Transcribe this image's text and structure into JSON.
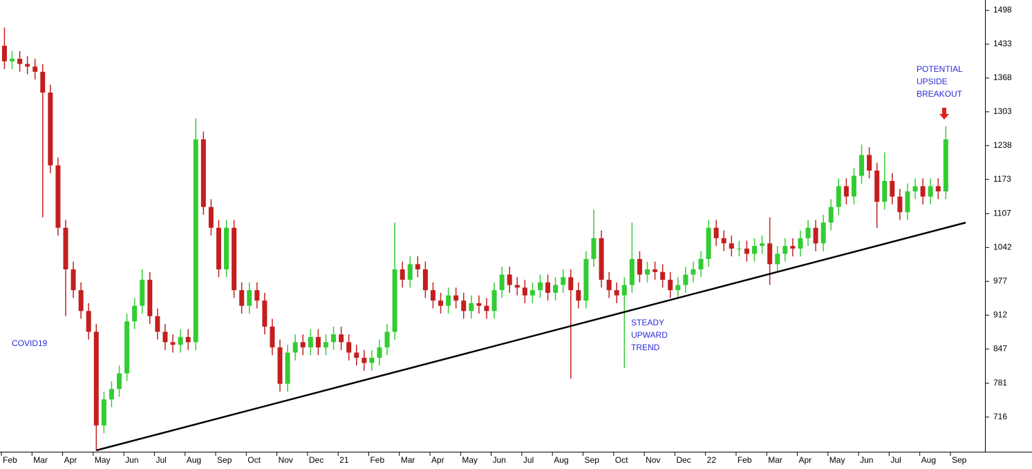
{
  "chart_data": {
    "type": "candlestick",
    "x": [
      0.1,
      0.35,
      0.6,
      0.85,
      1.1,
      1.35,
      1.6,
      1.85,
      2.1,
      2.35,
      2.6,
      2.85,
      3.1,
      3.35,
      3.6,
      3.85,
      4.1,
      4.35,
      4.6,
      4.85,
      5.1,
      5.35,
      5.6,
      5.85,
      6.1,
      6.35,
      6.6,
      6.85,
      7.1,
      7.35,
      7.6,
      7.85,
      8.1,
      8.35,
      8.6,
      8.85,
      9.1,
      9.35,
      9.6,
      9.85,
      10.1,
      10.35,
      10.6,
      10.85,
      11.1,
      11.35,
      11.6,
      11.85,
      12.1,
      12.35,
      12.6,
      12.85,
      13.1,
      13.35,
      13.6,
      13.85,
      14.1,
      14.35,
      14.6,
      14.85,
      15.1,
      15.35,
      15.6,
      15.85,
      16.1,
      16.35,
      16.6,
      16.85,
      17.1,
      17.35,
      17.6,
      17.85,
      18.1,
      18.35,
      18.6,
      18.85,
      19.1,
      19.35,
      19.6,
      19.85,
      20.1,
      20.35,
      20.6,
      20.85,
      21.1,
      21.35,
      21.6,
      21.85,
      22.1,
      22.35,
      22.6,
      22.85,
      23.1,
      23.35,
      23.6,
      23.85,
      24.1,
      24.35,
      24.6,
      24.85,
      25.1,
      25.35,
      25.6,
      25.85,
      26.1,
      26.35,
      26.6,
      26.85,
      27.1,
      27.35,
      27.6,
      27.85,
      28.1,
      28.35,
      28.6,
      28.85,
      29.1,
      29.35,
      29.6,
      29.85,
      30.1,
      30.35,
      30.6,
      30.85
    ],
    "open": [
      1430,
      1400,
      1405,
      1395,
      1390,
      1380,
      1340,
      1200,
      1080,
      1000,
      960,
      920,
      880,
      700,
      750,
      770,
      800,
      900,
      930,
      980,
      910,
      880,
      860,
      855,
      870,
      860,
      1250,
      1120,
      1080,
      1000,
      1080,
      960,
      930,
      960,
      940,
      890,
      850,
      780,
      840,
      860,
      850,
      870,
      850,
      860,
      875,
      860,
      840,
      830,
      820,
      830,
      850,
      880,
      1000,
      980,
      1010,
      1000,
      960,
      940,
      930,
      950,
      940,
      920,
      935,
      930,
      920,
      960,
      990,
      970,
      965,
      950,
      960,
      975,
      955,
      970,
      985,
      960,
      940,
      1020,
      1060,
      980,
      960,
      950,
      970,
      1020,
      990,
      1000,
      995,
      980,
      960,
      970,
      990,
      1000,
      1020,
      1080,
      1060,
      1050,
      1040,
      1040,
      1030,
      1045,
      1050,
      1010,
      1030,
      1045,
      1040,
      1060,
      1080,
      1050,
      1090,
      1120,
      1160,
      1140,
      1180,
      1220,
      1190,
      1130,
      1170,
      1140,
      1110,
      1150,
      1160,
      1140,
      1160,
      1150
    ],
    "high": [
      1465,
      1420,
      1420,
      1410,
      1405,
      1395,
      1355,
      1215,
      1095,
      1015,
      975,
      935,
      895,
      765,
      785,
      815,
      915,
      945,
      1000,
      995,
      925,
      895,
      875,
      885,
      885,
      1290,
      1265,
      1135,
      1095,
      1095,
      1095,
      975,
      975,
      975,
      955,
      905,
      865,
      855,
      875,
      875,
      885,
      885,
      875,
      890,
      890,
      875,
      855,
      845,
      845,
      865,
      895,
      1090,
      1015,
      1025,
      1025,
      1015,
      975,
      955,
      965,
      965,
      955,
      950,
      950,
      945,
      975,
      1005,
      1005,
      985,
      980,
      975,
      990,
      990,
      985,
      1000,
      1000,
      975,
      1035,
      1115,
      1075,
      995,
      975,
      985,
      1090,
      1035,
      1015,
      1015,
      1010,
      995,
      985,
      1005,
      1015,
      1035,
      1095,
      1095,
      1075,
      1065,
      1055,
      1055,
      1060,
      1065,
      1100,
      1045,
      1060,
      1060,
      1075,
      1095,
      1095,
      1105,
      1135,
      1175,
      1175,
      1195,
      1240,
      1235,
      1205,
      1225,
      1185,
      1155,
      1165,
      1175,
      1175,
      1175,
      1175,
      1275
    ],
    "low": [
      1385,
      1385,
      1380,
      1375,
      1365,
      1100,
      1185,
      1065,
      910,
      945,
      905,
      865,
      652,
      685,
      735,
      755,
      785,
      885,
      915,
      895,
      865,
      845,
      840,
      840,
      845,
      845,
      1105,
      1065,
      985,
      985,
      945,
      915,
      915,
      925,
      875,
      835,
      765,
      765,
      825,
      835,
      835,
      835,
      835,
      845,
      845,
      825,
      815,
      805,
      805,
      815,
      835,
      865,
      965,
      965,
      985,
      945,
      925,
      915,
      915,
      925,
      905,
      905,
      915,
      905,
      905,
      945,
      955,
      950,
      935,
      935,
      945,
      940,
      940,
      955,
      790,
      925,
      925,
      1005,
      965,
      945,
      935,
      810,
      955,
      975,
      975,
      980,
      965,
      945,
      945,
      955,
      975,
      985,
      1005,
      1045,
      1035,
      1025,
      1025,
      1015,
      1015,
      1030,
      970,
      995,
      1015,
      1025,
      1025,
      1045,
      1035,
      1035,
      1075,
      1105,
      1125,
      1125,
      1165,
      1175,
      1080,
      1115,
      1125,
      1095,
      1095,
      1135,
      1125,
      1125,
      1135,
      1135
    ],
    "close": [
      1400,
      1405,
      1395,
      1390,
      1380,
      1340,
      1200,
      1080,
      1000,
      960,
      920,
      880,
      700,
      750,
      770,
      800,
      900,
      930,
      980,
      910,
      880,
      860,
      855,
      870,
      860,
      1250,
      1120,
      1080,
      1000,
      1080,
      960,
      930,
      960,
      940,
      890,
      850,
      780,
      840,
      860,
      850,
      870,
      850,
      860,
      875,
      860,
      840,
      830,
      820,
      830,
      850,
      880,
      1000,
      980,
      1010,
      1000,
      960,
      940,
      930,
      950,
      940,
      920,
      935,
      930,
      920,
      960,
      990,
      970,
      965,
      950,
      960,
      975,
      955,
      970,
      985,
      960,
      940,
      1020,
      1060,
      980,
      960,
      950,
      970,
      1020,
      990,
      1000,
      995,
      980,
      960,
      970,
      990,
      1000,
      1020,
      1080,
      1060,
      1050,
      1040,
      1040,
      1030,
      1045,
      1050,
      1010,
      1030,
      1045,
      1040,
      1060,
      1080,
      1050,
      1090,
      1120,
      1160,
      1140,
      1180,
      1220,
      1190,
      1130,
      1170,
      1140,
      1110,
      1150,
      1160,
      1140,
      1160,
      1150,
      1250
    ],
    "up_color": "#33cc33",
    "down_color": "#c41e1e",
    "xlim": [
      0,
      32.13
    ],
    "ylim": [
      652,
      1518
    ],
    "xticks": [
      {
        "value": 0,
        "label": "Feb"
      },
      {
        "value": 1,
        "label": "Mar"
      },
      {
        "value": 2,
        "label": "Apr"
      },
      {
        "value": 3,
        "label": "May"
      },
      {
        "value": 4,
        "label": "Jun"
      },
      {
        "value": 5,
        "label": "Jul"
      },
      {
        "value": 6,
        "label": "Aug"
      },
      {
        "value": 7,
        "label": "Sep"
      },
      {
        "value": 8,
        "label": "Oct"
      },
      {
        "value": 9,
        "label": "Nov"
      },
      {
        "value": 10,
        "label": "Dec"
      },
      {
        "value": 11,
        "label": "21"
      },
      {
        "value": 12,
        "label": "Feb"
      },
      {
        "value": 13,
        "label": "Mar"
      },
      {
        "value": 14,
        "label": "Apr"
      },
      {
        "value": 15,
        "label": "May"
      },
      {
        "value": 16,
        "label": "Jun"
      },
      {
        "value": 17,
        "label": "Jul"
      },
      {
        "value": 18,
        "label": "Aug"
      },
      {
        "value": 19,
        "label": "Sep"
      },
      {
        "value": 20,
        "label": "Oct"
      },
      {
        "value": 21,
        "label": "Nov"
      },
      {
        "value": 22,
        "label": "Dec"
      },
      {
        "value": 23,
        "label": "22"
      },
      {
        "value": 24,
        "label": "Feb"
      },
      {
        "value": 25,
        "label": "Mar"
      },
      {
        "value": 26,
        "label": "Apr"
      },
      {
        "value": 27,
        "label": "May"
      },
      {
        "value": 28,
        "label": "Jun"
      },
      {
        "value": 29,
        "label": "Jul"
      },
      {
        "value": 30,
        "label": "Aug"
      },
      {
        "value": 31,
        "label": "Sep"
      }
    ],
    "yticks": [
      716,
      781,
      847,
      912,
      977,
      1042,
      1107,
      1173,
      1238,
      1303,
      1368,
      1433,
      1498
    ],
    "grid": false,
    "trendline": {
      "x": [
        3.1,
        31.5
      ],
      "values": [
        652,
        1090
      ],
      "color": "#000000"
    },
    "annotations": [
      {
        "lines": [
          "COVID19"
        ]
      },
      {
        "lines": [
          "STEADY",
          "UPWARD",
          "TREND"
        ]
      },
      {
        "lines": [
          "POTENTIAL",
          "UPSIDE",
          "BREAKOUT"
        ]
      }
    ]
  }
}
